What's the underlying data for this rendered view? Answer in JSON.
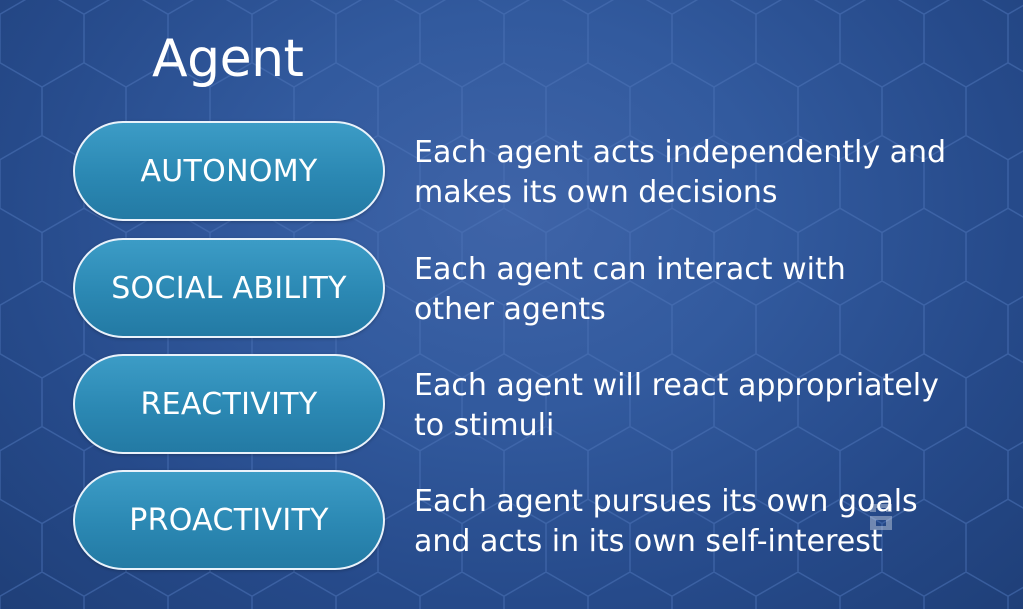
{
  "slide": {
    "title": "Agent",
    "background_color": "#2f569b",
    "pill_color": "#2b88b3",
    "pill_border_color": "#e9f2fb",
    "text_color": "#ffffff",
    "watermark_icon": "logo-watermark-icon"
  },
  "properties": [
    {
      "label": "AUTONOMY",
      "description_lines": [
        "Each agent acts independently and",
        "makes its own decisions"
      ]
    },
    {
      "label": "SOCIAL ABILITY",
      "description_lines": [
        "Each agent can interact with",
        "other agents"
      ]
    },
    {
      "label": "REACTIVITY",
      "description_lines": [
        "Each agent will react appropriately",
        "to stimuli"
      ]
    },
    {
      "label": "PROACTIVITY",
      "description_lines": [
        "Each agent pursues its own goals",
        "and acts in its own self-interest"
      ]
    }
  ]
}
